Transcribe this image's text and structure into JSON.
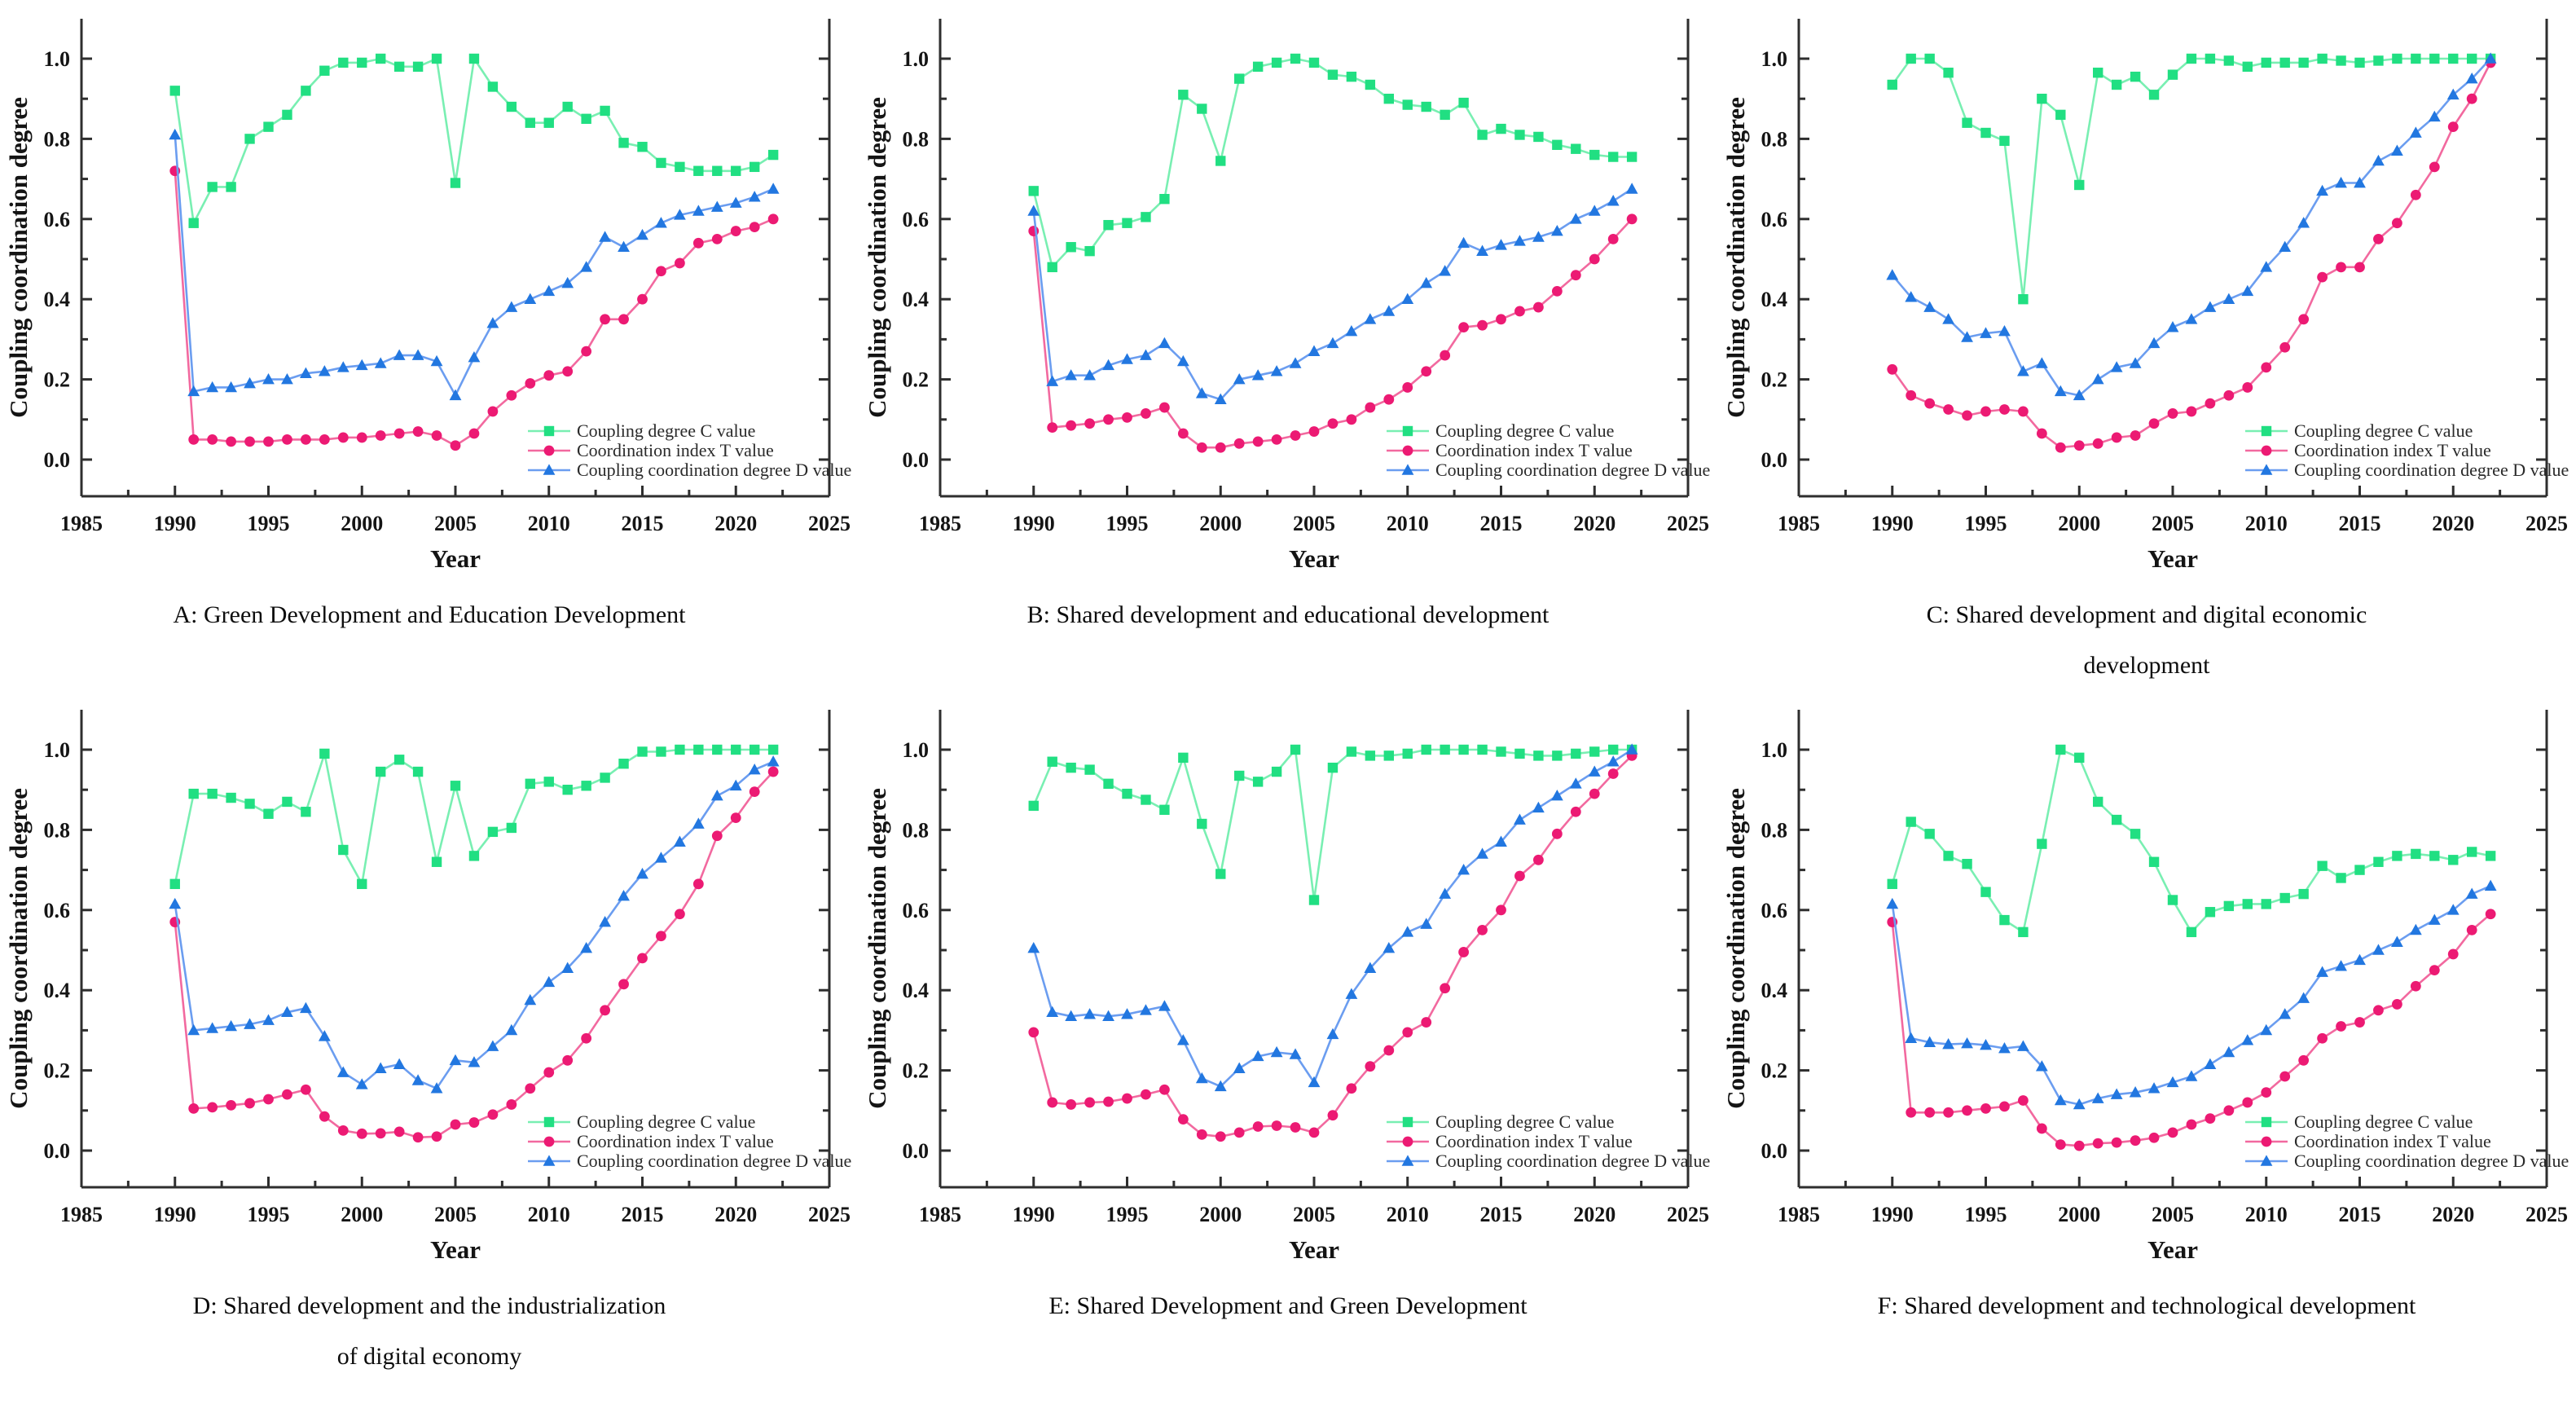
{
  "figure": {
    "ylabel": "Coupling coordination degree",
    "xlabel": "Year",
    "legend_labels": [
      "Coupling degree C value",
      "Coordination index T value",
      "Coupling coordination degree D value"
    ],
    "legend_position": "lower right",
    "grid": false,
    "axes": {
      "xlim": [
        1985,
        2025
      ],
      "ylim": [
        0.0,
        1.0
      ],
      "xticks": [
        1985,
        1990,
        1995,
        2000,
        2005,
        2010,
        2015,
        2020,
        2025
      ],
      "yticks": [
        "0.0",
        "0.2",
        "0.4",
        "0.6",
        "0.8",
        "1.0"
      ],
      "x_minor_step": 2.5,
      "y_minor_step": 0.1
    },
    "colors": {
      "c_marker": "#21DF82",
      "c_line": "#79EFB2",
      "t_marker": "#EC1A73",
      "t_line": "#F2699F",
      "d_marker": "#2277E0",
      "d_line": "#6B9DF0",
      "axis": "#2E2E2E",
      "text": "#141414"
    }
  },
  "years": [
    1990,
    1991,
    1992,
    1993,
    1994,
    1995,
    1996,
    1997,
    1998,
    1999,
    2000,
    2001,
    2002,
    2003,
    2004,
    2005,
    2006,
    2007,
    2008,
    2009,
    2010,
    2011,
    2012,
    2013,
    2014,
    2015,
    2016,
    2017,
    2018,
    2019,
    2020,
    2021,
    2022
  ],
  "chart_data": [
    {
      "id": "A",
      "type": "line",
      "caption_lines": [
        "A: Green Development and Education Development",
        ""
      ],
      "series": [
        {
          "name": "Coupling degree C value",
          "marker": "square",
          "values": [
            0.92,
            0.59,
            0.68,
            0.68,
            0.8,
            0.83,
            0.86,
            0.92,
            0.97,
            0.99,
            0.99,
            1.0,
            0.98,
            0.98,
            1.0,
            0.69,
            1.0,
            0.93,
            0.88,
            0.84,
            0.84,
            0.88,
            0.85,
            0.87,
            0.79,
            0.78,
            0.74,
            0.73,
            0.72,
            0.72,
            0.72,
            0.73,
            0.76
          ]
        },
        {
          "name": "Coordination index T value",
          "marker": "circle",
          "values": [
            0.72,
            0.05,
            0.05,
            0.045,
            0.045,
            0.045,
            0.05,
            0.05,
            0.05,
            0.055,
            0.055,
            0.06,
            0.065,
            0.07,
            0.06,
            0.035,
            0.065,
            0.12,
            0.16,
            0.19,
            0.21,
            0.22,
            0.27,
            0.35,
            0.35,
            0.4,
            0.47,
            0.49,
            0.54,
            0.55,
            0.57,
            0.58,
            0.6
          ]
        },
        {
          "name": "Coupling coordination degree D value",
          "marker": "triangle",
          "values": [
            0.81,
            0.17,
            0.18,
            0.18,
            0.19,
            0.2,
            0.2,
            0.215,
            0.22,
            0.23,
            0.235,
            0.24,
            0.26,
            0.26,
            0.245,
            0.16,
            0.255,
            0.34,
            0.38,
            0.4,
            0.42,
            0.44,
            0.48,
            0.555,
            0.53,
            0.56,
            0.59,
            0.61,
            0.62,
            0.63,
            0.64,
            0.655,
            0.675
          ]
        }
      ]
    },
    {
      "id": "B",
      "type": "line",
      "caption_lines": [
        "B: Shared development and educational development",
        ""
      ],
      "series": [
        {
          "name": "Coupling degree C value",
          "marker": "square",
          "values": [
            0.67,
            0.48,
            0.53,
            0.52,
            0.585,
            0.59,
            0.605,
            0.65,
            0.91,
            0.875,
            0.745,
            0.95,
            0.98,
            0.99,
            1.0,
            0.99,
            0.96,
            0.955,
            0.935,
            0.9,
            0.885,
            0.88,
            0.86,
            0.89,
            0.81,
            0.825,
            0.81,
            0.805,
            0.785,
            0.775,
            0.76,
            0.755,
            0.755
          ]
        },
        {
          "name": "Coordination index T value",
          "marker": "circle",
          "values": [
            0.57,
            0.08,
            0.085,
            0.09,
            0.1,
            0.105,
            0.115,
            0.13,
            0.065,
            0.03,
            0.03,
            0.04,
            0.045,
            0.05,
            0.06,
            0.07,
            0.09,
            0.1,
            0.13,
            0.15,
            0.18,
            0.22,
            0.26,
            0.33,
            0.335,
            0.35,
            0.37,
            0.38,
            0.42,
            0.46,
            0.5,
            0.55,
            0.6
          ]
        },
        {
          "name": "Coupling coordination degree D value",
          "marker": "triangle",
          "values": [
            0.62,
            0.195,
            0.21,
            0.21,
            0.235,
            0.25,
            0.26,
            0.29,
            0.245,
            0.165,
            0.15,
            0.2,
            0.21,
            0.22,
            0.24,
            0.27,
            0.29,
            0.32,
            0.35,
            0.37,
            0.4,
            0.44,
            0.47,
            0.54,
            0.52,
            0.535,
            0.545,
            0.555,
            0.57,
            0.6,
            0.62,
            0.645,
            0.675
          ]
        }
      ]
    },
    {
      "id": "C",
      "type": "line",
      "caption_lines": [
        "C: Shared development and digital economic",
        "development"
      ],
      "series": [
        {
          "name": "Coupling degree C value",
          "marker": "square",
          "values": [
            0.935,
            1.0,
            1.0,
            0.965,
            0.84,
            0.815,
            0.795,
            0.4,
            0.9,
            0.86,
            0.685,
            0.965,
            0.935,
            0.955,
            0.91,
            0.96,
            1.0,
            1.0,
            0.995,
            0.98,
            0.99,
            0.99,
            0.99,
            1.0,
            0.995,
            0.99,
            0.995,
            1.0,
            1.0,
            1.0,
            1.0,
            1.0,
            1.0
          ]
        },
        {
          "name": "Coordination index T value",
          "marker": "circle",
          "values": [
            0.225,
            0.16,
            0.14,
            0.125,
            0.11,
            0.12,
            0.125,
            0.12,
            0.065,
            0.03,
            0.035,
            0.04,
            0.055,
            0.06,
            0.09,
            0.115,
            0.12,
            0.14,
            0.16,
            0.18,
            0.23,
            0.28,
            0.35,
            0.455,
            0.48,
            0.48,
            0.55,
            0.59,
            0.66,
            0.73,
            0.83,
            0.9,
            0.99
          ]
        },
        {
          "name": "Coupling coordination degree D value",
          "marker": "triangle",
          "values": [
            0.46,
            0.405,
            0.38,
            0.35,
            0.305,
            0.315,
            0.32,
            0.22,
            0.24,
            0.17,
            0.16,
            0.2,
            0.23,
            0.24,
            0.29,
            0.33,
            0.35,
            0.38,
            0.4,
            0.42,
            0.48,
            0.53,
            0.59,
            0.67,
            0.69,
            0.69,
            0.745,
            0.77,
            0.815,
            0.855,
            0.91,
            0.95,
            1.0
          ]
        }
      ]
    },
    {
      "id": "D",
      "type": "line",
      "caption_lines": [
        "D: Shared development and the industrialization",
        "of digital economy"
      ],
      "series": [
        {
          "name": "Coupling degree C value",
          "marker": "square",
          "values": [
            0.665,
            0.89,
            0.89,
            0.88,
            0.865,
            0.84,
            0.87,
            0.845,
            0.99,
            0.75,
            0.665,
            0.945,
            0.975,
            0.945,
            0.72,
            0.91,
            0.735,
            0.795,
            0.805,
            0.915,
            0.92,
            0.9,
            0.91,
            0.93,
            0.965,
            0.995,
            0.995,
            1.0,
            1.0,
            1.0,
            1.0,
            1.0,
            1.0
          ]
        },
        {
          "name": "Coordination index T value",
          "marker": "circle",
          "values": [
            0.57,
            0.105,
            0.108,
            0.113,
            0.118,
            0.128,
            0.14,
            0.152,
            0.085,
            0.05,
            0.042,
            0.043,
            0.047,
            0.033,
            0.035,
            0.065,
            0.07,
            0.09,
            0.115,
            0.155,
            0.195,
            0.225,
            0.28,
            0.35,
            0.415,
            0.48,
            0.535,
            0.59,
            0.665,
            0.785,
            0.83,
            0.895,
            0.945
          ]
        },
        {
          "name": "Coupling coordination degree D value",
          "marker": "triangle",
          "values": [
            0.615,
            0.3,
            0.305,
            0.31,
            0.315,
            0.325,
            0.345,
            0.355,
            0.285,
            0.195,
            0.165,
            0.205,
            0.215,
            0.175,
            0.155,
            0.225,
            0.22,
            0.26,
            0.3,
            0.375,
            0.42,
            0.455,
            0.505,
            0.57,
            0.635,
            0.69,
            0.73,
            0.77,
            0.815,
            0.885,
            0.91,
            0.95,
            0.97
          ]
        }
      ]
    },
    {
      "id": "E",
      "type": "line",
      "caption_lines": [
        "E: Shared Development and Green Development",
        ""
      ],
      "series": [
        {
          "name": "Coupling degree C value",
          "marker": "square",
          "values": [
            0.86,
            0.97,
            0.955,
            0.95,
            0.915,
            0.89,
            0.875,
            0.85,
            0.98,
            0.815,
            0.69,
            0.935,
            0.92,
            0.945,
            1.0,
            0.625,
            0.955,
            0.995,
            0.985,
            0.985,
            0.99,
            1.0,
            1.0,
            1.0,
            1.0,
            0.995,
            0.99,
            0.985,
            0.985,
            0.99,
            0.995,
            1.0,
            1.0
          ]
        },
        {
          "name": "Coordination index T value",
          "marker": "circle",
          "values": [
            0.295,
            0.12,
            0.115,
            0.12,
            0.122,
            0.13,
            0.14,
            0.152,
            0.078,
            0.04,
            0.035,
            0.045,
            0.06,
            0.062,
            0.058,
            0.045,
            0.088,
            0.155,
            0.21,
            0.25,
            0.295,
            0.32,
            0.405,
            0.495,
            0.55,
            0.6,
            0.685,
            0.725,
            0.79,
            0.845,
            0.89,
            0.94,
            0.985
          ]
        },
        {
          "name": "Coupling coordination degree D value",
          "marker": "triangle",
          "values": [
            0.505,
            0.345,
            0.335,
            0.34,
            0.335,
            0.34,
            0.35,
            0.36,
            0.275,
            0.18,
            0.16,
            0.205,
            0.235,
            0.245,
            0.24,
            0.17,
            0.29,
            0.39,
            0.455,
            0.505,
            0.545,
            0.565,
            0.64,
            0.7,
            0.74,
            0.77,
            0.825,
            0.855,
            0.885,
            0.915,
            0.945,
            0.97,
            1.0
          ]
        }
      ]
    },
    {
      "id": "F",
      "type": "line",
      "caption_lines": [
        "F: Shared development and technological development",
        ""
      ],
      "series": [
        {
          "name": "Coupling degree C value",
          "marker": "square",
          "values": [
            0.665,
            0.82,
            0.79,
            0.735,
            0.715,
            0.645,
            0.575,
            0.545,
            0.765,
            1.0,
            0.98,
            0.87,
            0.825,
            0.79,
            0.72,
            0.625,
            0.545,
            0.595,
            0.61,
            0.615,
            0.615,
            0.63,
            0.64,
            0.71,
            0.68,
            0.7,
            0.72,
            0.735,
            0.74,
            0.735,
            0.725,
            0.745,
            0.735
          ]
        },
        {
          "name": "Coordination index T value",
          "marker": "circle",
          "values": [
            0.57,
            0.095,
            0.095,
            0.095,
            0.1,
            0.105,
            0.11,
            0.125,
            0.055,
            0.015,
            0.012,
            0.018,
            0.02,
            0.025,
            0.032,
            0.045,
            0.065,
            0.08,
            0.1,
            0.12,
            0.145,
            0.185,
            0.225,
            0.28,
            0.31,
            0.32,
            0.35,
            0.365,
            0.41,
            0.45,
            0.49,
            0.55,
            0.59
          ]
        },
        {
          "name": "Coupling coordination degree D value",
          "marker": "triangle",
          "values": [
            0.615,
            0.28,
            0.27,
            0.265,
            0.267,
            0.263,
            0.255,
            0.26,
            0.21,
            0.125,
            0.115,
            0.13,
            0.14,
            0.145,
            0.155,
            0.17,
            0.185,
            0.215,
            0.245,
            0.275,
            0.3,
            0.34,
            0.38,
            0.445,
            0.46,
            0.475,
            0.5,
            0.52,
            0.55,
            0.575,
            0.6,
            0.64,
            0.66
          ]
        }
      ]
    }
  ]
}
